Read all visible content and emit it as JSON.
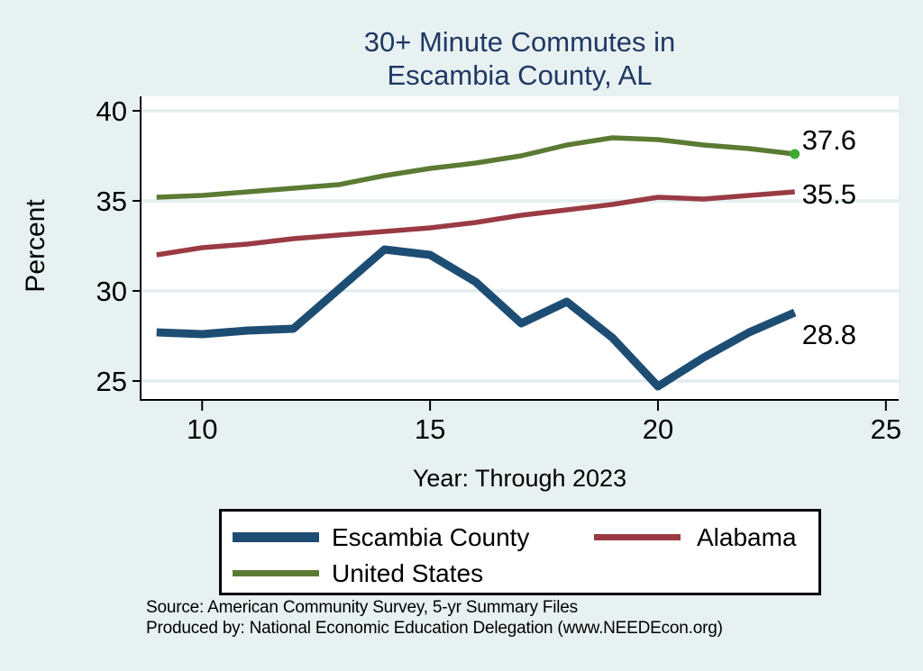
{
  "page": {
    "background": "#e8f1f2"
  },
  "title": {
    "line1": "30+ Minute Commutes in",
    "line2": "Escambia County, AL",
    "color": "#1f3864"
  },
  "chart_data": {
    "type": "line",
    "title": "30+ Minute Commutes in Escambia County, AL",
    "xlabel": "Year: Through 2023",
    "ylabel": "Percent",
    "x": [
      9,
      10,
      11,
      12,
      13,
      14,
      15,
      16,
      17,
      18,
      19,
      20,
      21,
      22,
      23
    ],
    "years": [
      2009,
      2010,
      2011,
      2012,
      2013,
      2014,
      2015,
      2016,
      2017,
      2018,
      2019,
      2020,
      2021,
      2022,
      2023
    ],
    "series": [
      {
        "name": "Escambia County",
        "color": "#1e4d74",
        "line_width": 9,
        "values": [
          27.7,
          27.6,
          27.8,
          27.9,
          30.1,
          32.3,
          32.0,
          30.5,
          28.2,
          29.4,
          27.4,
          24.7,
          26.3,
          27.7,
          28.8
        ],
        "end_label": "28.8",
        "end_label_dy": 24
      },
      {
        "name": "Alabama",
        "color": "#9a3b44",
        "line_width": 5.5,
        "values": [
          32.0,
          32.4,
          32.6,
          32.9,
          33.1,
          33.3,
          33.5,
          33.8,
          34.2,
          34.5,
          34.8,
          35.2,
          35.1,
          35.3,
          35.5
        ],
        "end_label": "35.5",
        "end_label_dy": 2
      },
      {
        "name": "United States",
        "color": "#5b7a33",
        "line_width": 5.5,
        "values": [
          35.2,
          35.3,
          35.5,
          35.7,
          35.9,
          36.4,
          36.8,
          37.1,
          37.5,
          38.1,
          38.5,
          38.4,
          38.1,
          37.9,
          37.6
        ],
        "end_label": "37.6",
        "end_label_dy": -16,
        "end_marker_color": "#3aaa35"
      }
    ],
    "x_ticks": [
      10,
      15,
      20,
      25
    ],
    "y_ticks": [
      25,
      30,
      35,
      40
    ],
    "xlim": [
      8.65,
      25.28
    ],
    "ylim": [
      24,
      40.8
    ],
    "grid": "horizontal",
    "legend_position": "bottom",
    "colors": {
      "plot_bg": "#ffffff",
      "grid": "#e2edf0",
      "axis": "#000000",
      "tick_text": "#000000",
      "value_label_text": "#000000"
    }
  },
  "footer": {
    "line1": "Source: American Community Survey, 5-yr Summary Files",
    "line2": "Produced by: National Economic Education Delegation (www.NEEDEcon.org)"
  }
}
